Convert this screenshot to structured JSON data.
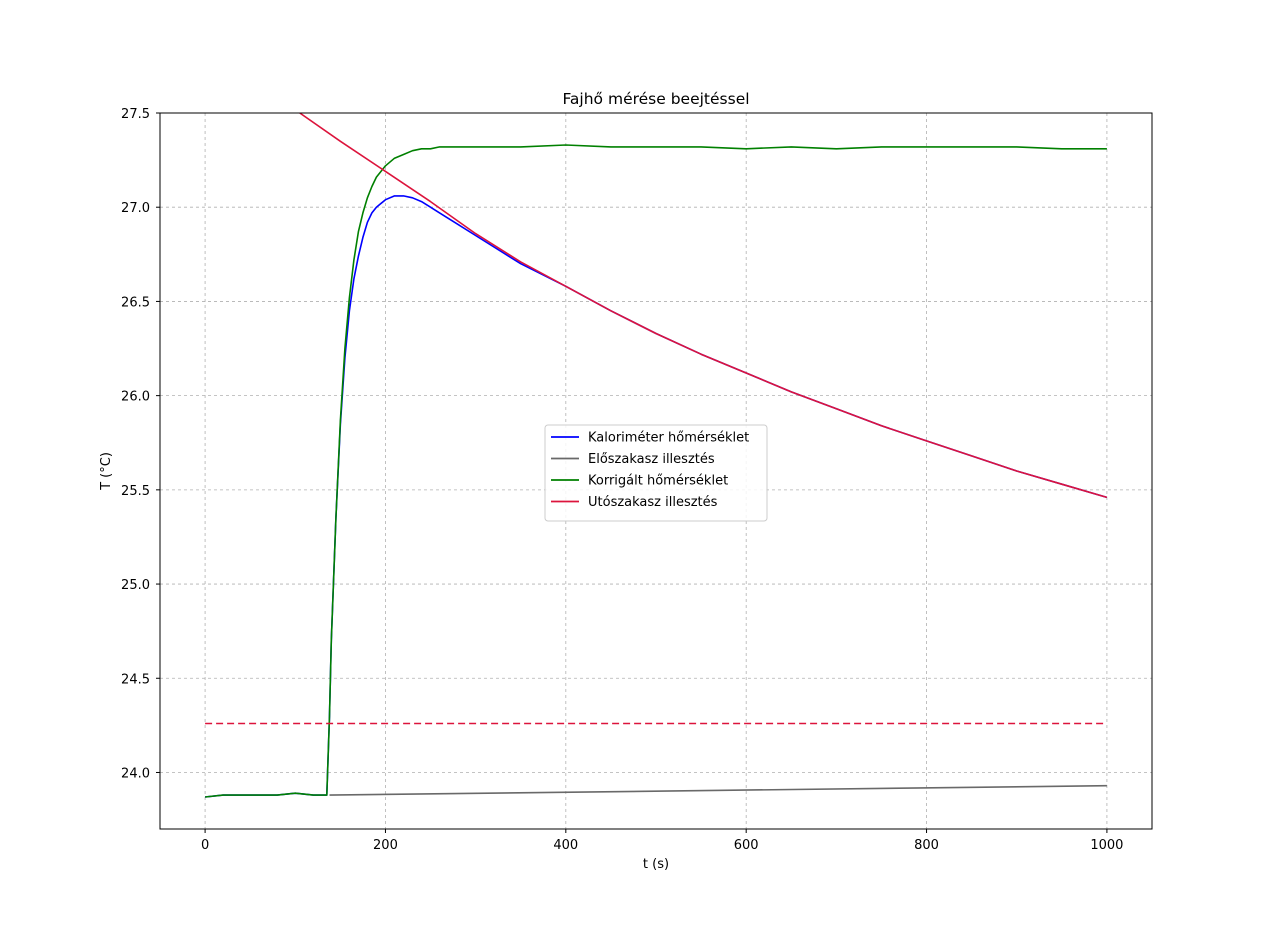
{
  "chart_data": {
    "type": "line",
    "title": "Fajhő mérése beejtéssel",
    "xlabel": "t (s)",
    "ylabel": "T (°C)",
    "xlim": [
      -50,
      1050
    ],
    "ylim": [
      23.7,
      27.5
    ],
    "xticks": [
      0,
      200,
      400,
      600,
      800,
      1000
    ],
    "xtick_labels": [
      "0",
      "200",
      "400",
      "600",
      "800",
      "1000"
    ],
    "yticks": [
      24.0,
      24.5,
      25.0,
      25.5,
      26.0,
      26.5,
      27.0,
      27.5
    ],
    "ytick_labels": [
      "24.0",
      "24.5",
      "25.0",
      "25.5",
      "26.0",
      "26.5",
      "27.0",
      "27.5"
    ],
    "grid": true,
    "legend_position": "center",
    "series": [
      {
        "name": "Kaloriméter hőmérséklet",
        "color": "#0000ff",
        "style": "solid",
        "x": [
          0,
          20,
          40,
          60,
          80,
          100,
          120,
          135,
          138,
          140,
          145,
          150,
          155,
          160,
          165,
          170,
          175,
          180,
          185,
          190,
          200,
          210,
          220,
          230,
          240,
          250,
          260,
          280,
          300,
          350,
          400,
          450,
          500,
          550,
          600,
          650,
          700,
          750,
          800,
          850,
          900,
          950,
          1000
        ],
        "y": [
          23.87,
          23.88,
          23.88,
          23.88,
          23.88,
          23.89,
          23.88,
          23.88,
          24.3,
          24.7,
          25.35,
          25.85,
          26.2,
          26.45,
          26.62,
          26.74,
          26.84,
          26.92,
          26.97,
          27.0,
          27.04,
          27.06,
          27.06,
          27.05,
          27.03,
          27.0,
          26.97,
          26.91,
          26.85,
          26.7,
          26.58,
          26.45,
          26.33,
          26.22,
          26.12,
          26.02,
          25.93,
          25.84,
          25.76,
          25.68,
          25.6,
          25.53,
          25.46
        ]
      },
      {
        "name": "Előszakasz illesztés",
        "color": "#696969",
        "style": "solid",
        "x": [
          138,
          1000
        ],
        "y": [
          23.88,
          23.93
        ]
      },
      {
        "name": "Korrigált hőmérséklet",
        "color": "#008000",
        "style": "solid",
        "x": [
          0,
          20,
          40,
          60,
          80,
          100,
          120,
          135,
          138,
          140,
          145,
          150,
          155,
          160,
          165,
          170,
          175,
          180,
          185,
          190,
          200,
          210,
          220,
          230,
          240,
          250,
          260,
          280,
          300,
          350,
          400,
          450,
          500,
          550,
          600,
          650,
          700,
          750,
          800,
          850,
          900,
          950,
          1000
        ],
        "y": [
          23.87,
          23.88,
          23.88,
          23.88,
          23.88,
          23.89,
          23.88,
          23.88,
          24.3,
          24.7,
          25.35,
          25.87,
          26.25,
          26.52,
          26.72,
          26.87,
          26.97,
          27.05,
          27.11,
          27.16,
          27.22,
          27.26,
          27.28,
          27.3,
          27.31,
          27.31,
          27.32,
          27.32,
          27.32,
          27.32,
          27.33,
          27.32,
          27.32,
          27.32,
          27.31,
          27.32,
          27.31,
          27.32,
          27.32,
          27.32,
          27.32,
          27.31,
          27.31
        ]
      },
      {
        "name": "Utószakasz illesztés",
        "color": "#dc143c",
        "style": "solid",
        "x": [
          105,
          150,
          200,
          250,
          300,
          350,
          400,
          450,
          500,
          550,
          600,
          650,
          700,
          750,
          800,
          850,
          900,
          950,
          1000
        ],
        "y": [
          27.5,
          27.35,
          27.19,
          27.03,
          26.86,
          26.71,
          26.58,
          26.45,
          26.33,
          26.22,
          26.12,
          26.02,
          25.93,
          25.84,
          25.76,
          25.68,
          25.6,
          25.53,
          25.46
        ]
      },
      {
        "color": "#dc143c",
        "style": "dashed",
        "x": [
          0,
          1000
        ],
        "y": [
          24.26,
          24.26
        ]
      }
    ]
  }
}
